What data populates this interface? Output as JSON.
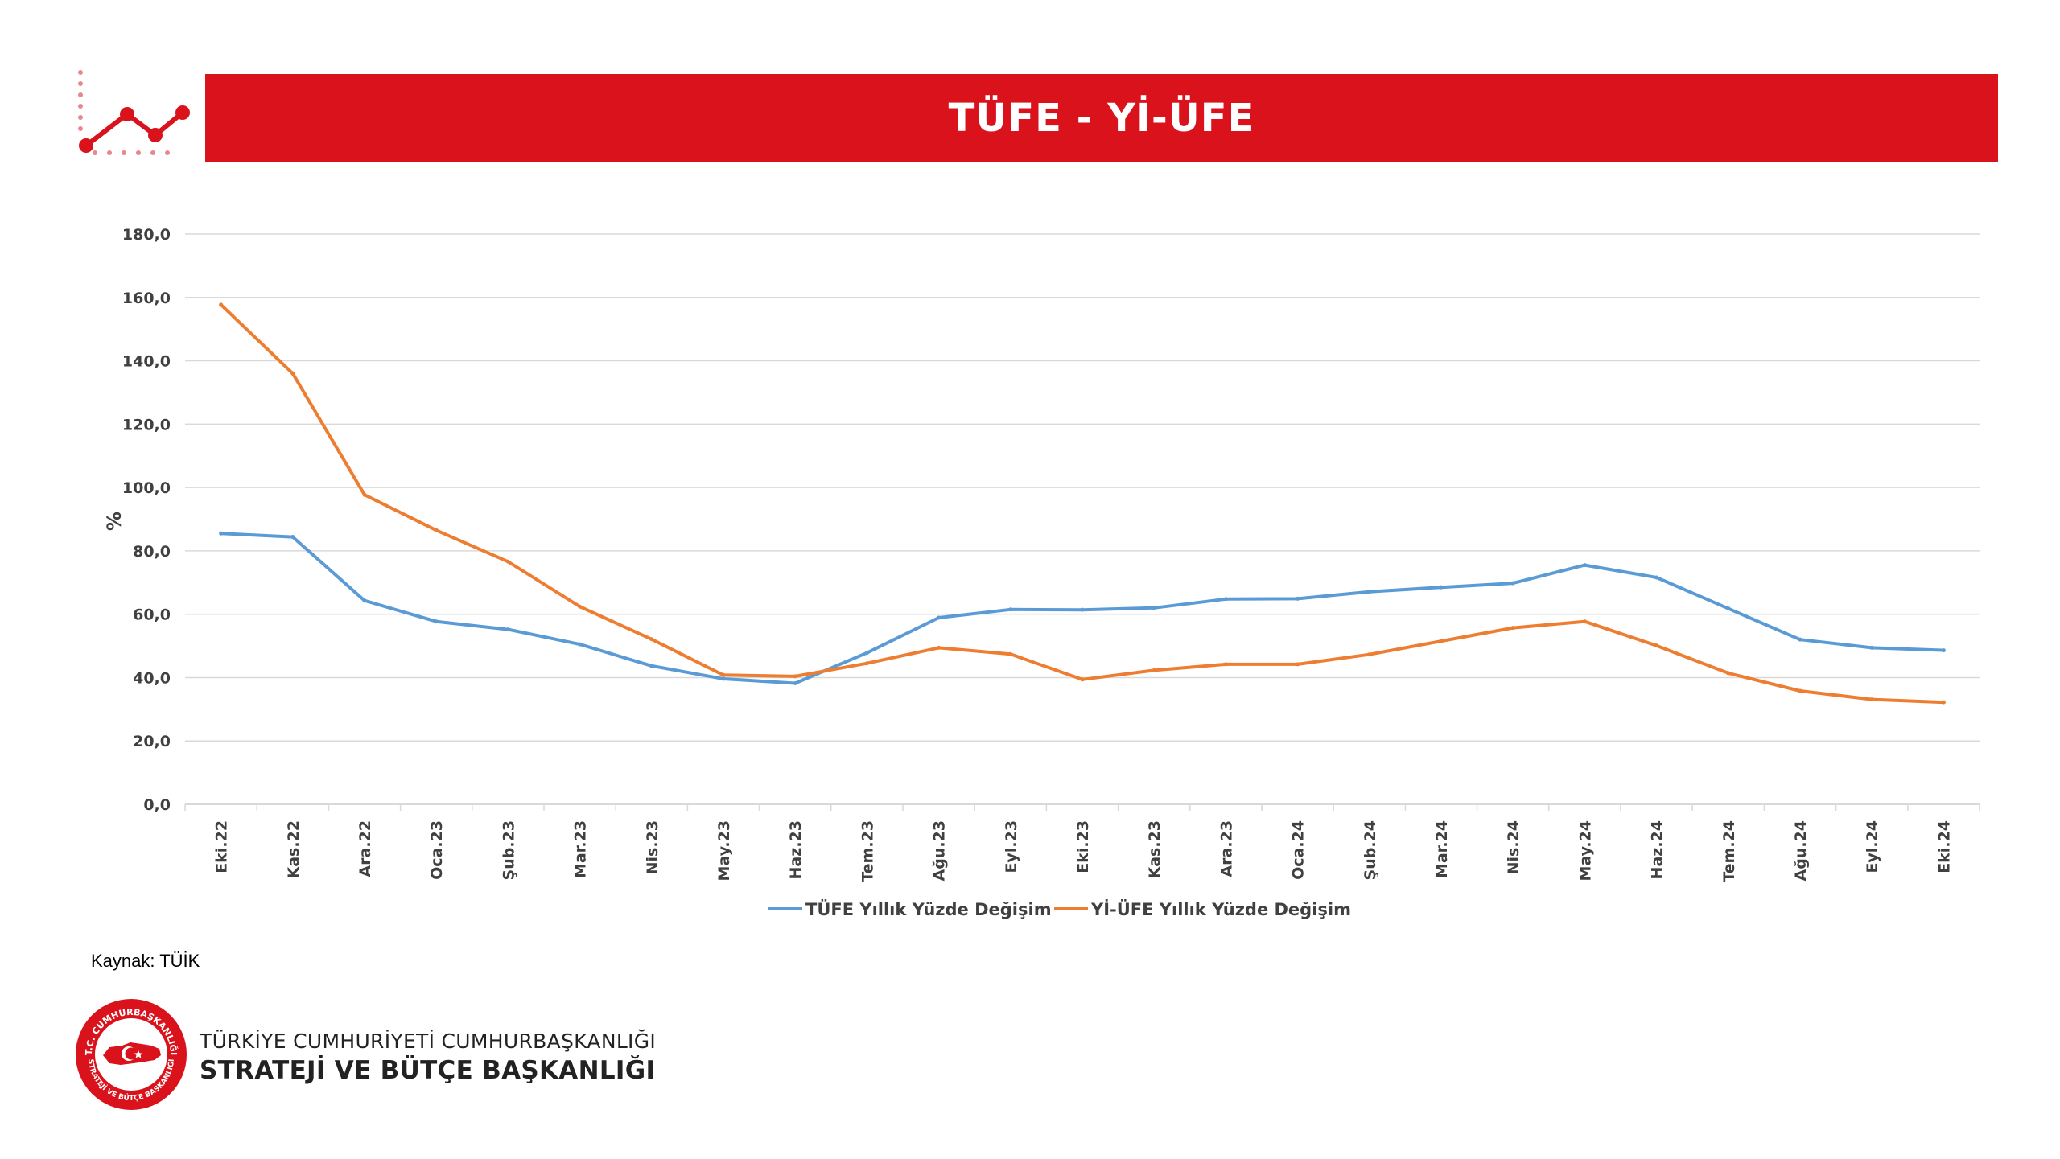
{
  "header": {
    "title": "TÜFE - Yİ-ÜFE"
  },
  "chart_data": {
    "type": "line",
    "title": "",
    "xlabel": "",
    "ylabel": "%",
    "ylim": [
      0,
      180
    ],
    "ytick_step": 20,
    "grid": "horizontal",
    "legend_position": "bottom",
    "categories": [
      "Eki.22",
      "Kas.22",
      "Ara.22",
      "Oca.23",
      "Şub.23",
      "Mar.23",
      "Nis.23",
      "May.23",
      "Haz.23",
      "Tem.23",
      "Ağu.23",
      "Eyl.23",
      "Eki.23",
      "Kas.23",
      "Ara.23",
      "Oca.24",
      "Şub.24",
      "Mar.24",
      "Nis.24",
      "May.24",
      "Haz.24",
      "Tem.24",
      "Ağu.24",
      "Eyl.24",
      "Eki.24"
    ],
    "series": [
      {
        "name": "TÜFE Yıllık Yüzde Değişim",
        "color": "#5b9bd5",
        "values": [
          85.5,
          84.4,
          64.3,
          57.7,
          55.2,
          50.5,
          43.7,
          39.6,
          38.2,
          47.8,
          58.9,
          61.5,
          61.4,
          62.0,
          64.8,
          64.9,
          67.1,
          68.5,
          69.8,
          75.5,
          71.6,
          61.8,
          52.0,
          49.4,
          48.6
        ]
      },
      {
        "name": "Yİ-ÜFE Yıllık Yüzde Değişim",
        "color": "#ed7d31",
        "values": [
          157.7,
          136.0,
          97.7,
          86.5,
          76.6,
          62.4,
          52.1,
          40.8,
          40.4,
          44.5,
          49.4,
          47.4,
          39.4,
          42.3,
          44.2,
          44.2,
          47.3,
          51.5,
          55.7,
          57.7,
          50.1,
          41.4,
          35.8,
          33.1,
          32.2
        ]
      }
    ]
  },
  "source": {
    "text": "Kaynak: TÜİK"
  },
  "footer": {
    "line1": "TÜRKİYE CUMHURİYETİ CUMHURBAŞKANLIĞI",
    "line2": "STRATEJİ VE BÜTÇE BAŞKANLIĞI",
    "logo_top_text": "T.C. CUMHURBAŞKANLIĞI",
    "logo_bottom_text": "STRATEJİ VE BÜTÇE BAŞKANLIĞI"
  },
  "colors": {
    "brand_red": "#d9121b",
    "tufe": "#5b9bd5",
    "yiufe": "#ed7d31",
    "grid": "#d9d9d9"
  }
}
